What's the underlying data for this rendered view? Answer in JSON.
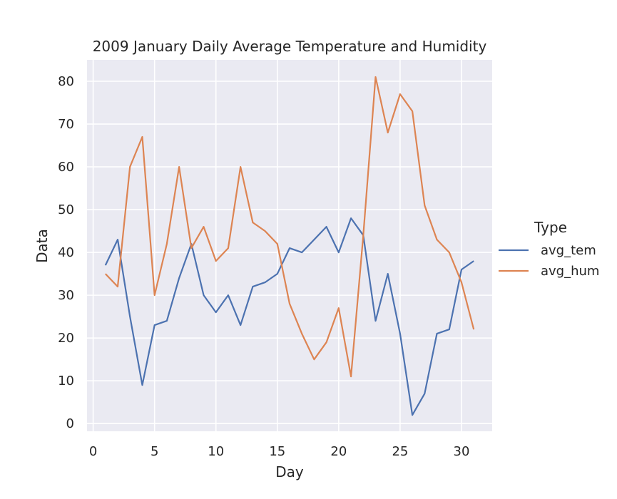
{
  "chart_data": {
    "type": "line",
    "title": "2009 January Daily Average Temperature and Humidity",
    "xlabel": "Day",
    "ylabel": "Data",
    "xlim": [
      -0.5,
      32.5
    ],
    "ylim": [
      -1.8,
      85
    ],
    "xticks": [
      0,
      5,
      10,
      15,
      20,
      25,
      30
    ],
    "yticks": [
      0,
      10,
      20,
      30,
      40,
      50,
      60,
      70,
      80
    ],
    "grid": true,
    "legend": {
      "title": "Type",
      "placement": "right"
    },
    "x": [
      1,
      2,
      3,
      4,
      5,
      6,
      7,
      8,
      9,
      10,
      11,
      12,
      13,
      14,
      15,
      16,
      17,
      18,
      19,
      20,
      21,
      22,
      23,
      24,
      25,
      26,
      27,
      28,
      29,
      30,
      31
    ],
    "series": [
      {
        "name": "avg_tem",
        "color": "#4c72b0",
        "values": [
          37,
          43,
          25,
          9,
          23,
          24,
          34,
          42,
          30,
          26,
          30,
          23,
          32,
          33,
          35,
          41,
          40,
          43,
          46,
          40,
          48,
          44,
          24,
          35,
          21,
          2,
          7,
          21,
          22,
          36,
          38
        ]
      },
      {
        "name": "avg_hum",
        "color": "#dd8452",
        "values": [
          35,
          32,
          60,
          67,
          30,
          42,
          60,
          41,
          46,
          38,
          41,
          60,
          47,
          45,
          42,
          28,
          21,
          15,
          19,
          27,
          11,
          44,
          81,
          68,
          77,
          73,
          51,
          43,
          40,
          33,
          22
        ]
      }
    ]
  }
}
